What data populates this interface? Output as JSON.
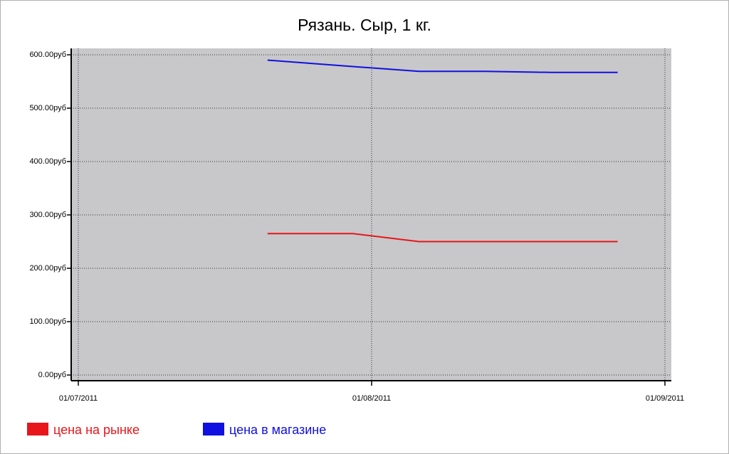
{
  "chart_data": {
    "type": "line",
    "title": "Рязань. Сыр, 1 кг.",
    "x": [
      "21/07/2011",
      "30/07/2011",
      "06/08/2011",
      "13/08/2011",
      "20/08/2011",
      "27/08/2011"
    ],
    "series": [
      {
        "name": "цена на рынке",
        "color": "#e8161b",
        "values": [
          265,
          265,
          250,
          250,
          250,
          250
        ]
      },
      {
        "name": "цена в магазине",
        "color": "#1010e0",
        "values": [
          590,
          578,
          569,
          569,
          567,
          567
        ]
      }
    ],
    "xlim": [
      "01/07/2011",
      "01/09/2011"
    ],
    "xticks": [
      "01/07/2011",
      "01/08/2011",
      "01/09/2011"
    ],
    "ylim": [
      0,
      600
    ],
    "yticks": [
      {
        "value": 0,
        "label": "0.00руб"
      },
      {
        "value": 100,
        "label": "100.00руб"
      },
      {
        "value": 200,
        "label": "200.00руб"
      },
      {
        "value": 300,
        "label": "300.00руб"
      },
      {
        "value": 400,
        "label": "400.00руб"
      },
      {
        "value": 500,
        "label": "500.00руб"
      },
      {
        "value": 600,
        "label": "600.00руб"
      }
    ],
    "grid": true,
    "plot_background": "#c8c7c9",
    "legend": "bottom-left"
  }
}
